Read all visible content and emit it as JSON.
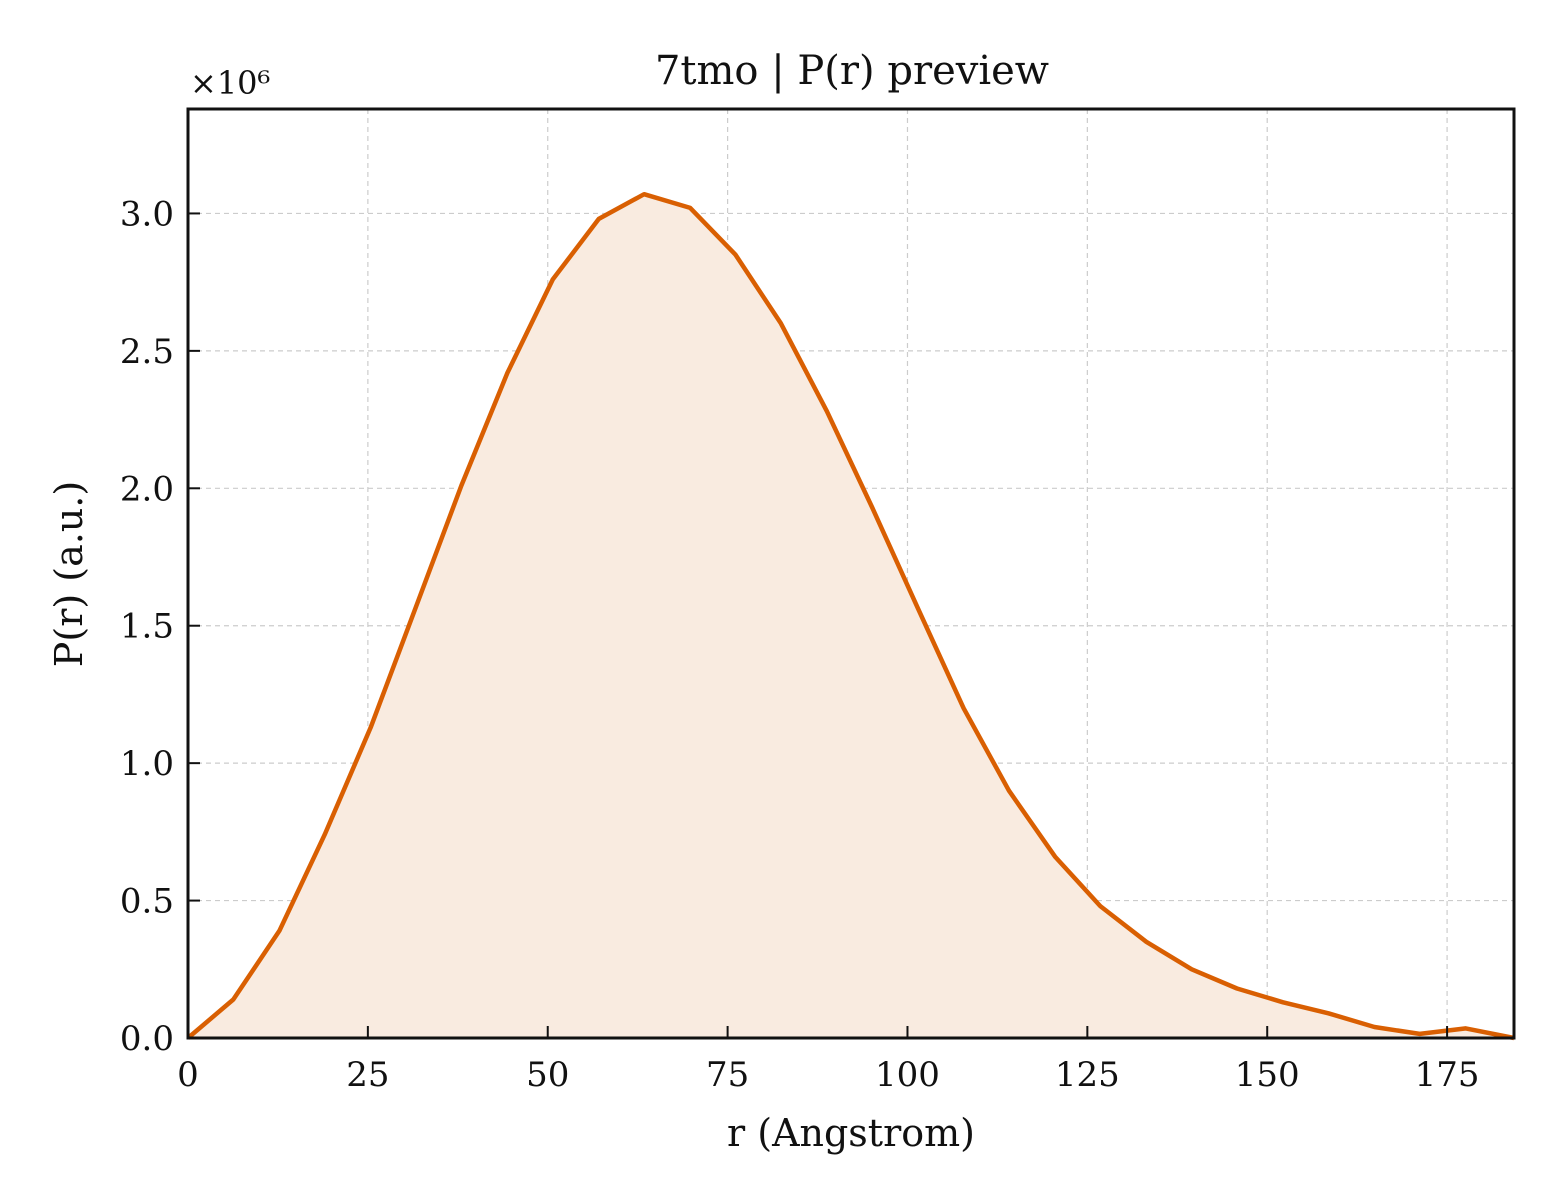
{
  "chart_data": {
    "type": "area",
    "title": "7tmo | P(r) preview",
    "xlabel": "r (Angstrom)",
    "ylabel": "P(r) (a.u.)",
    "y_scale_label": "×10⁶",
    "y_multiplier": 1000000,
    "xlim": [
      0,
      184.3
    ],
    "ylim": [
      0,
      3.38
    ],
    "x_ticks": [
      "0",
      "25",
      "50",
      "75",
      "100",
      "125",
      "150",
      "175"
    ],
    "y_ticks": [
      "0.0",
      "0.5",
      "1.0",
      "1.5",
      "2.0",
      "2.5",
      "3.0"
    ],
    "grid": true,
    "line_color": "#d95f02",
    "fill_color": "#f9ebe0",
    "series": [
      {
        "x": [
          0,
          6.3,
          12.7,
          19.0,
          25.4,
          31.7,
          38.0,
          44.4,
          50.7,
          57.1,
          63.4,
          69.8,
          76.1,
          82.4,
          88.8,
          95.1,
          101.5,
          107.8,
          114.1,
          120.5,
          126.8,
          133.2,
          139.5,
          145.8,
          152.2,
          158.5,
          164.9,
          171.2,
          177.6,
          184.3
        ],
        "y": [
          0.0,
          0.14,
          0.39,
          0.74,
          1.13,
          1.57,
          2.01,
          2.42,
          2.76,
          2.98,
          3.07,
          3.02,
          2.85,
          2.6,
          2.28,
          1.93,
          1.56,
          1.2,
          0.9,
          0.66,
          0.48,
          0.35,
          0.25,
          0.18,
          0.13,
          0.09,
          0.04,
          0.015,
          0.035,
          0.0
        ]
      }
    ]
  }
}
